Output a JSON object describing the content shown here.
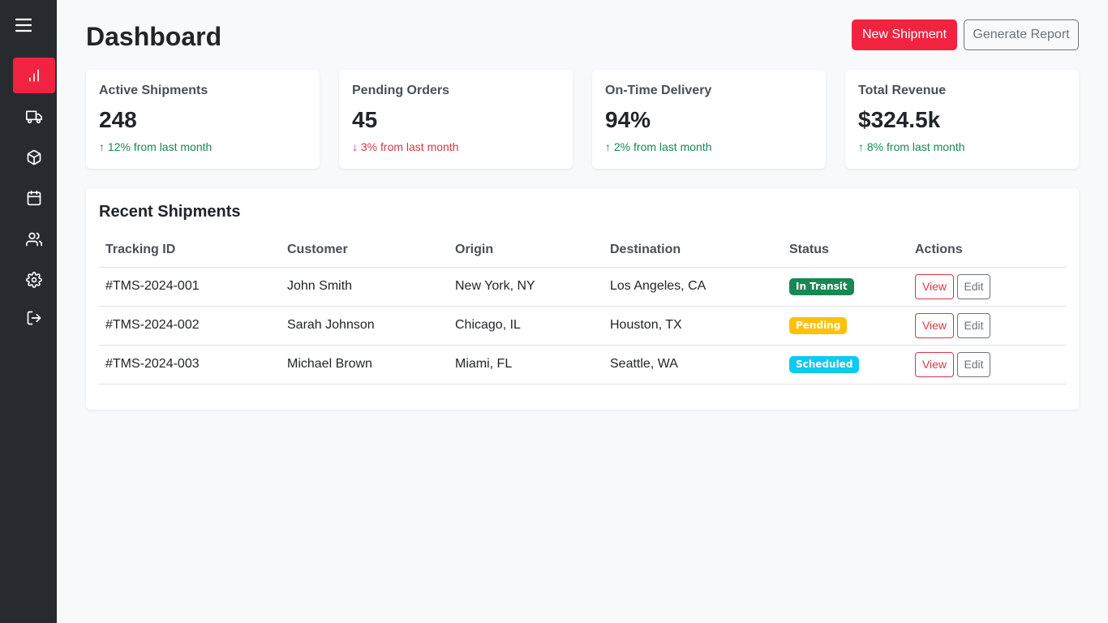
{
  "sidebar": {
    "items": [
      {
        "icon": "bar-chart-icon",
        "active": true
      },
      {
        "icon": "truck-icon",
        "active": false
      },
      {
        "icon": "box-icon",
        "active": false
      },
      {
        "icon": "calendar-icon",
        "active": false
      },
      {
        "icon": "users-icon",
        "active": false
      },
      {
        "icon": "gear-icon",
        "active": false
      },
      {
        "icon": "logout-icon",
        "active": false
      }
    ]
  },
  "header": {
    "title": "Dashboard",
    "new_shipment_label": "New Shipment",
    "generate_report_label": "Generate Report"
  },
  "stats": [
    {
      "label": "Active Shipments",
      "value": "248",
      "change": "↑ 12% from last month",
      "trend": "up"
    },
    {
      "label": "Pending Orders",
      "value": "45",
      "change": "↓ 3% from last month",
      "trend": "down"
    },
    {
      "label": "On-Time Delivery",
      "value": "94%",
      "change": "↑ 2% from last month",
      "trend": "up"
    },
    {
      "label": "Total Revenue",
      "value": "$324.5k",
      "change": "↑ 8% from last month",
      "trend": "up"
    }
  ],
  "recent_shipments": {
    "title": "Recent Shipments",
    "columns": [
      "Tracking ID",
      "Customer",
      "Origin",
      "Destination",
      "Status",
      "Actions"
    ],
    "rows": [
      {
        "tracking_id": "#TMS-2024-001",
        "customer": "John Smith",
        "origin": "New York, NY",
        "destination": "Los Angeles, CA",
        "status": "In Transit",
        "status_color": "#198754",
        "status_text_color": "#ffffff"
      },
      {
        "tracking_id": "#TMS-2024-002",
        "customer": "Sarah Johnson",
        "origin": "Chicago, IL",
        "destination": "Houston, TX",
        "status": "Pending",
        "status_color": "#ffc107",
        "status_text_color": "#ffffff"
      },
      {
        "tracking_id": "#TMS-2024-003",
        "customer": "Michael Brown",
        "origin": "Miami, FL",
        "destination": "Seattle, WA",
        "status": "Scheduled",
        "status_color": "#0dcaf0",
        "status_text_color": "#ffffff"
      }
    ],
    "view_label": "View",
    "edit_label": "Edit"
  },
  "colors": {
    "accent": "#f12341",
    "sidebar_bg": "#272b30",
    "up": "#198754",
    "down": "#dc3545"
  }
}
